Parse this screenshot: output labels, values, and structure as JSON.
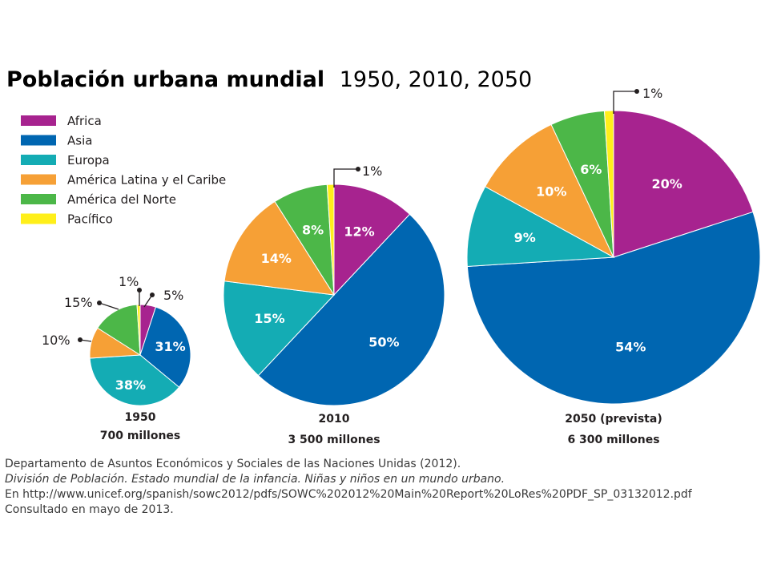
{
  "chart_data": {
    "type": "pie",
    "title": "Población urbana mundial",
    "subtitle": "1950, 2010, 2050",
    "legend_position": "top-left",
    "categories": [
      "Africa",
      "Asia",
      "Europa",
      "América Latina y el Caribe",
      "América del Norte",
      "Pacífico"
    ],
    "colors": [
      "#a7238f",
      "#0066b1",
      "#14acb4",
      "#f6a036",
      "#4cb748",
      "#ffef1a"
    ],
    "pies": [
      {
        "year_label": "1950",
        "total_label": "700 millones",
        "values": [
          5,
          31,
          38,
          10,
          15,
          1
        ],
        "value_labels": [
          "5%",
          "31%",
          "38%",
          "10%",
          "15%",
          "1%"
        ]
      },
      {
        "year_label": "2010",
        "total_label": "3 500 millones",
        "values": [
          12,
          50,
          15,
          14,
          8,
          1
        ],
        "value_labels": [
          "12%",
          "50%",
          "15%",
          "14%",
          "8%",
          "1%"
        ]
      },
      {
        "year_label": "2050 (prevista)",
        "total_label": "6 300 millones",
        "values": [
          20,
          54,
          9,
          10,
          6,
          1
        ],
        "value_labels": [
          "20%",
          "54%",
          "9%",
          "10%",
          "6%",
          "1%"
        ]
      }
    ]
  },
  "source": {
    "line1": "Departamento de Asuntos Económicos y Sociales de las Naciones Unidas (2012).",
    "line2": "División de Población. Estado mundial de la infancia. Niñas y niños en un mundo urbano.",
    "line3": "En http://www.unicef.org/spanish/sowc2012/pdfs/SOWC%202012%20Main%20Report%20LoRes%20PDF_SP_03132012.pdf",
    "line4": "Consultado en mayo de 2013."
  }
}
